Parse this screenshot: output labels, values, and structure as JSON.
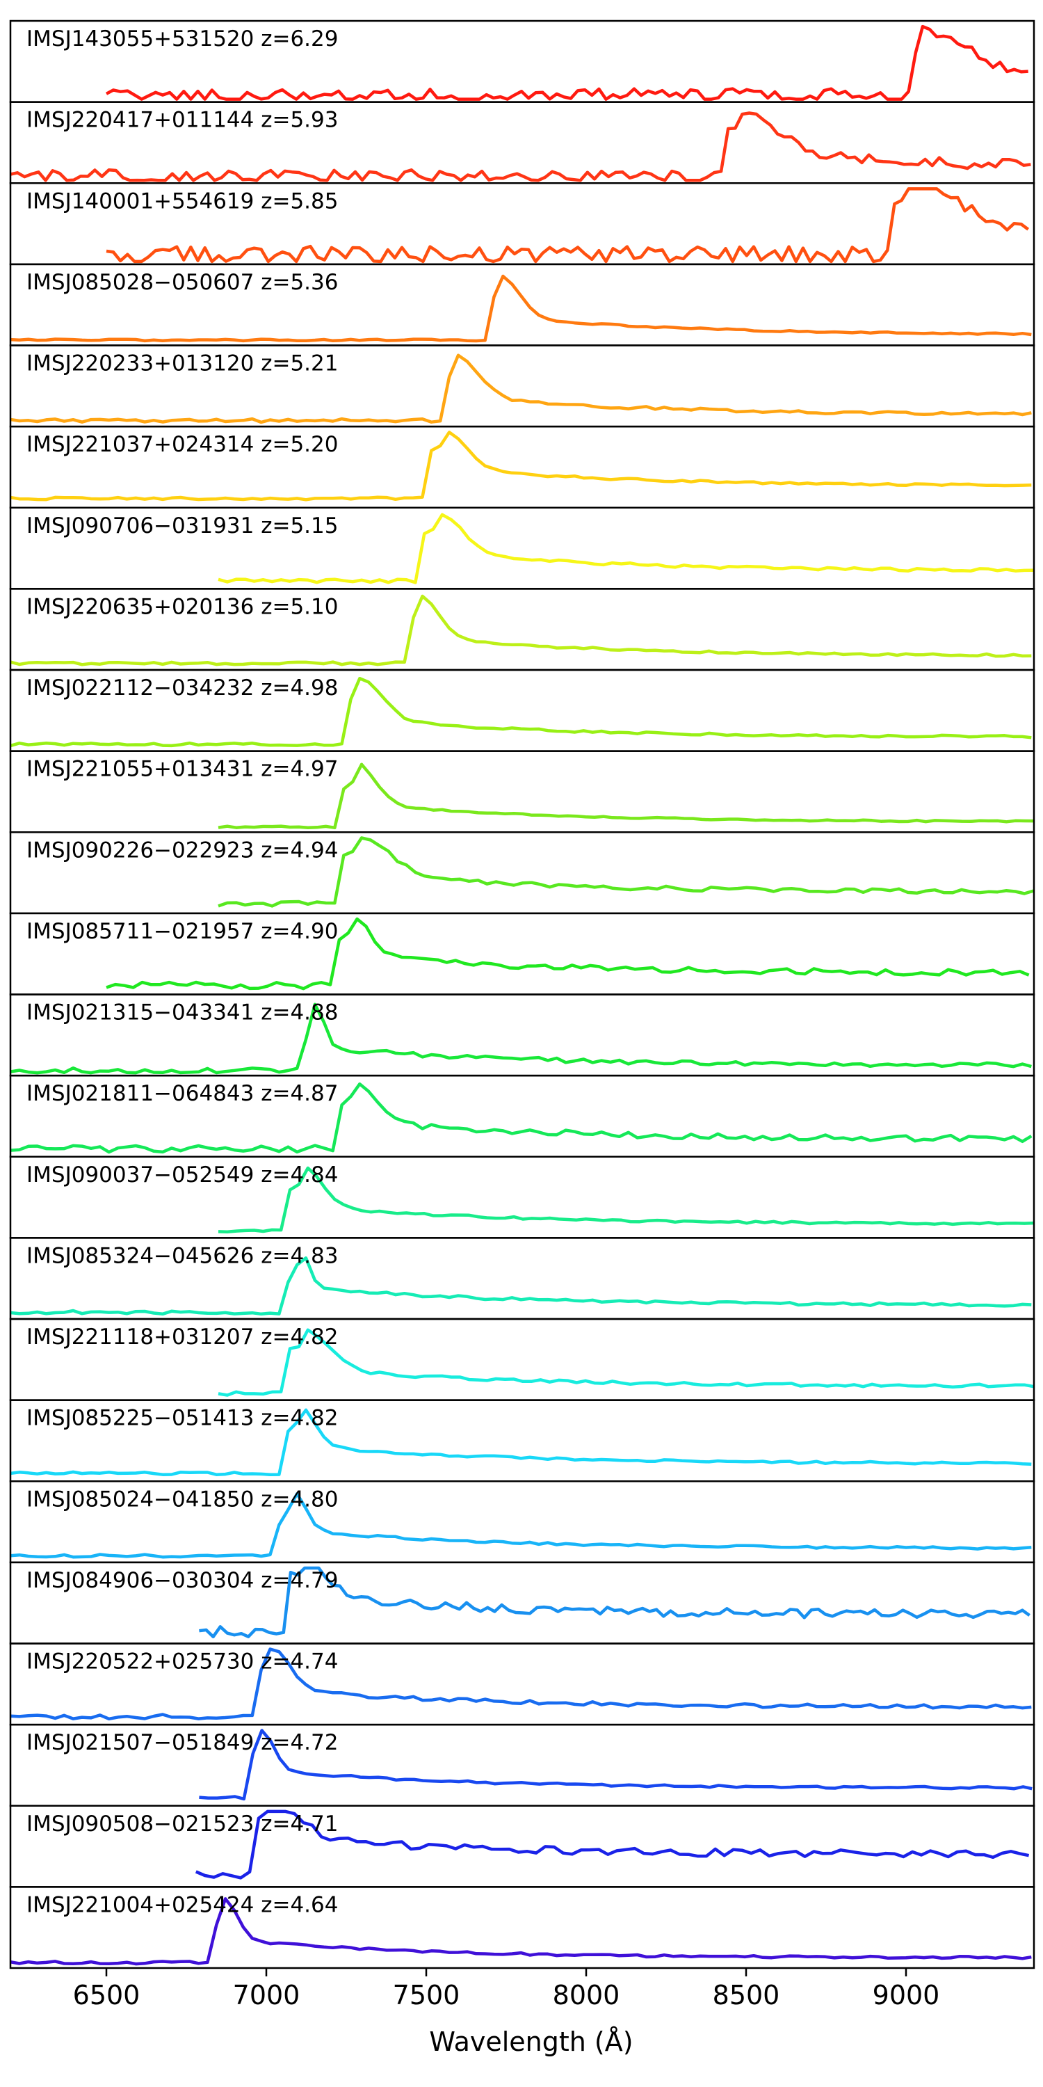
{
  "chart_data": {
    "type": "line",
    "xlabel": "Wavelength (Å)",
    "xlim": [
      6200,
      9400
    ],
    "xticks": [
      6500,
      7000,
      7500,
      8000,
      8500,
      9000
    ],
    "grid": false,
    "series": [
      {
        "name": "IMSJ143055+531520 z=6.29",
        "color": "#ff1a10",
        "start": 6500,
        "peak": 9050,
        "feature_width": 140,
        "base": 0.15,
        "noise": 0.15
      },
      {
        "name": "IMSJ220417+011144 z=5.93",
        "color": "#ff3515",
        "start": 6200,
        "peak": 8480,
        "feature_width": 110,
        "base": 0.15,
        "noise": 0.15
      },
      {
        "name": "IMSJ140001+554619 z=5.85",
        "color": "#ff5010",
        "start": 6500,
        "peak": 9000,
        "feature_width": 160,
        "base": 0.25,
        "noise": 0.2
      },
      {
        "name": "IMSJ085028−050607 z=5.36",
        "color": "#ff7a10",
        "start": 6200,
        "peak": 7730,
        "feature_width": 60,
        "base": 0.1,
        "noise": 0.02
      },
      {
        "name": "IMSJ220233+013120 z=5.21",
        "color": "#ffa512",
        "start": 6200,
        "peak": 7590,
        "feature_width": 70,
        "base": 0.12,
        "noise": 0.04
      },
      {
        "name": "IMSJ221037+024314 z=5.20",
        "color": "#ffd010",
        "start": 6200,
        "peak": 7550,
        "feature_width": 70,
        "base": 0.25,
        "noise": 0.03
      },
      {
        "name": "IMSJ090706−031931 z=5.15",
        "color": "#f6f618",
        "start": 6850,
        "peak": 7530,
        "feature_width": 80,
        "base": 0.2,
        "noise": 0.04
      },
      {
        "name": "IMSJ220635+020136 z=5.10",
        "color": "#bdf018",
        "start": 6200,
        "peak": 7480,
        "feature_width": 60,
        "base": 0.15,
        "noise": 0.03
      },
      {
        "name": "IMSJ022112−034232 z=4.98",
        "color": "#98f015",
        "start": 6200,
        "peak": 7290,
        "feature_width": 70,
        "base": 0.15,
        "noise": 0.03
      },
      {
        "name": "IMSJ221055+013431 z=4.97",
        "color": "#7ae81c",
        "start": 6850,
        "peak": 7280,
        "feature_width": 60,
        "base": 0.1,
        "noise": 0.02
      },
      {
        "name": "IMSJ090226−022923 z=4.94",
        "color": "#58e820",
        "start": 6850,
        "peak": 7280,
        "feature_width": 100,
        "base": 0.25,
        "noise": 0.06
      },
      {
        "name": "IMSJ085711−021957 z=4.90",
        "color": "#20e820",
        "start": 6500,
        "peak": 7260,
        "feature_width": 60,
        "base": 0.25,
        "noise": 0.08
      },
      {
        "name": "IMSJ021315−043341 z=4.88",
        "color": "#18e838",
        "start": 6200,
        "peak": 7150,
        "feature_width": 30,
        "base": 0.1,
        "noise": 0.06
      },
      {
        "name": "IMSJ021811−064843 z=4.87",
        "color": "#15e858",
        "start": 6200,
        "peak": 7270,
        "feature_width": 70,
        "base": 0.2,
        "noise": 0.08
      },
      {
        "name": "IMSJ090037−052549 z=4.84",
        "color": "#18ec8a",
        "start": 6850,
        "peak": 7110,
        "feature_width": 60,
        "base": 0.15,
        "noise": 0.03
      },
      {
        "name": "IMSJ085324−045626 z=4.83",
        "color": "#15ecb5",
        "start": 6200,
        "peak": 7100,
        "feature_width": 30,
        "base": 0.15,
        "noise": 0.04
      },
      {
        "name": "IMSJ221118+031207 z=4.82",
        "color": "#18ecde",
        "start": 6850,
        "peak": 7110,
        "feature_width": 80,
        "base": 0.15,
        "noise": 0.04
      },
      {
        "name": "IMSJ085225−051413 z=4.82",
        "color": "#18d8f8",
        "start": 6200,
        "peak": 7100,
        "feature_width": 50,
        "base": 0.2,
        "noise": 0.03
      },
      {
        "name": "IMSJ085024−041850 z=4.80",
        "color": "#18b4f8",
        "start": 6200,
        "peak": 7080,
        "feature_width": 40,
        "base": 0.15,
        "noise": 0.03
      },
      {
        "name": "IMSJ084906−030304 z=4.79",
        "color": "#1890f0",
        "start": 6790,
        "peak": 7100,
        "feature_width": 80,
        "base": 0.35,
        "noise": 0.12
      },
      {
        "name": "IMSJ220522+025730 z=4.74",
        "color": "#186cf0",
        "start": 6200,
        "peak": 7010,
        "feature_width": 60,
        "base": 0.2,
        "noise": 0.05
      },
      {
        "name": "IMSJ021507−051849 z=4.72",
        "color": "#1848f0",
        "start": 6790,
        "peak": 6980,
        "feature_width": 40,
        "base": 0.2,
        "noise": 0.03
      },
      {
        "name": "IMSJ090508−021523 z=4.71",
        "color": "#1a22e8",
        "start": 6780,
        "peak": 7000,
        "feature_width": 90,
        "base": 0.4,
        "noise": 0.1
      },
      {
        "name": "IMSJ221004+025424 z=4.64",
        "color": "#3f10d8",
        "start": 6200,
        "peak": 6870,
        "feature_width": 40,
        "base": 0.1,
        "noise": 0.03
      }
    ]
  }
}
